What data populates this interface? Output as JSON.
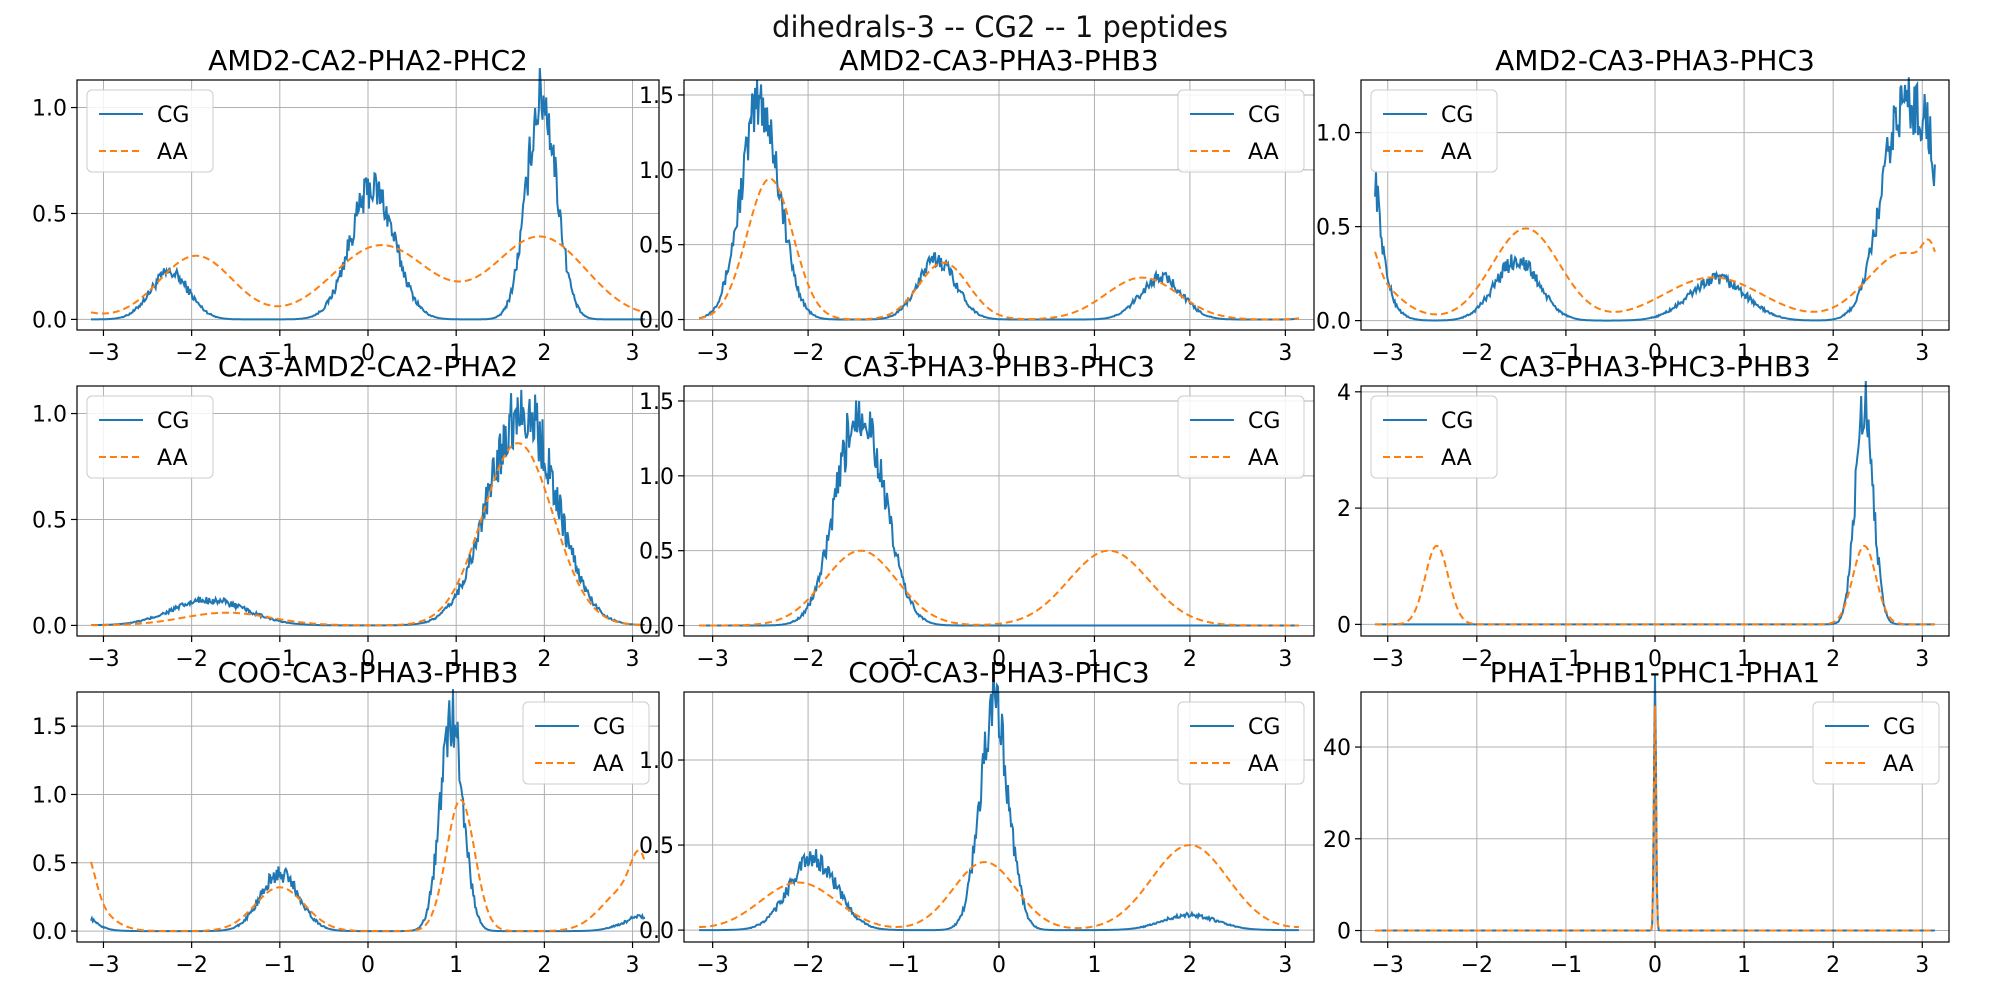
{
  "figure": {
    "suptitle": "dihedrals-3 -- CG2 -- 1 peptides",
    "colors": {
      "CG": "#1f77b4",
      "AA": "#ff7f0e",
      "grid": "#b0b0b0",
      "axis": "#000000"
    },
    "series_styles": {
      "CG": "solid",
      "AA": "dashed"
    }
  },
  "chart_data": [
    {
      "type": "line",
      "title": "AMD2-CA2-PHA2-PHC2",
      "xlim": [
        -3.3,
        3.3
      ],
      "ylim": [
        -0.05,
        1.13
      ],
      "xticks": [
        -3,
        -2,
        -1,
        0,
        1,
        2,
        3
      ],
      "yticks": [
        0.0,
        0.5,
        1.0
      ],
      "ytick_labels": [
        "0.0",
        "0.5",
        "1.0"
      ],
      "legend": "top-left",
      "grid": true,
      "series": [
        {
          "name": "CG",
          "peaks": [
            [
              -2.25,
              0.22,
              0.22
            ],
            [
              0.05,
              0.62,
              0.25
            ],
            [
              1.97,
              1.05,
              0.17
            ]
          ]
        },
        {
          "name": "AA",
          "peaks": [
            [
              -1.95,
              0.3,
              0.42
            ],
            [
              0.15,
              0.35,
              0.55
            ],
            [
              1.95,
              0.39,
              0.52
            ]
          ]
        }
      ]
    },
    {
      "type": "line",
      "title": "AMD2-CA3-PHA3-PHB3",
      "xlim": [
        -3.3,
        3.3
      ],
      "ylim": [
        -0.07,
        1.6
      ],
      "xticks": [
        -3,
        -2,
        -1,
        0,
        1,
        2,
        3
      ],
      "yticks": [
        0.0,
        0.5,
        1.0,
        1.5
      ],
      "ytick_labels": [
        "0.0",
        "0.5",
        "1.0",
        "1.5"
      ],
      "legend": "top-right",
      "grid": true,
      "series": [
        {
          "name": "CG",
          "peaks": [
            [
              -2.5,
              1.45,
              0.2
            ],
            [
              -0.65,
              0.4,
              0.2
            ],
            [
              1.7,
              0.28,
              0.22
            ]
          ]
        },
        {
          "name": "AA",
          "peaks": [
            [
              -2.4,
              0.94,
              0.24
            ],
            [
              -0.58,
              0.38,
              0.26
            ],
            [
              1.5,
              0.28,
              0.38
            ]
          ]
        }
      ]
    },
    {
      "type": "line",
      "title": "AMD2-CA3-PHA3-PHC3",
      "xlim": [
        -3.3,
        3.3
      ],
      "ylim": [
        -0.05,
        1.28
      ],
      "xticks": [
        -3,
        -2,
        -1,
        0,
        1,
        2,
        3
      ],
      "yticks": [
        0.0,
        0.5,
        1.0
      ],
      "ytick_labels": [
        "0.0",
        "0.5",
        "1.0"
      ],
      "legend": "top-left",
      "grid": true,
      "series": [
        {
          "name": "CG",
          "peaks": [
            [
              -3.2,
              0.38,
              0.1
            ],
            [
              -1.55,
              0.32,
              0.25
            ],
            [
              0.7,
              0.22,
              0.32
            ],
            [
              2.8,
              1.15,
              0.25
            ]
          ]
        },
        {
          "name": "AA",
          "peaks": [
            [
              -3.2,
              0.14,
              0.08
            ],
            [
              -1.45,
              0.49,
              0.38
            ],
            [
              0.65,
              0.23,
              0.55
            ],
            [
              2.8,
              0.36,
              0.42
            ]
          ]
        }
      ]
    },
    {
      "type": "line",
      "title": "CA3-AMD2-CA2-PHA2",
      "xlim": [
        -3.3,
        3.3
      ],
      "ylim": [
        -0.05,
        1.13
      ],
      "xticks": [
        -3,
        -2,
        -1,
        0,
        1,
        2,
        3
      ],
      "yticks": [
        0.0,
        0.5,
        1.0
      ],
      "ytick_labels": [
        "0.0",
        "0.5",
        "1.0"
      ],
      "legend": "top-left",
      "grid": true,
      "series": [
        {
          "name": "CG",
          "peaks": [
            [
              -1.8,
              0.12,
              0.42
            ],
            [
              1.75,
              1.02,
              0.38
            ]
          ]
        },
        {
          "name": "AA",
          "peaks": [
            [
              -1.6,
              0.06,
              0.5
            ],
            [
              1.7,
              0.86,
              0.4
            ]
          ]
        }
      ]
    },
    {
      "type": "line",
      "title": "CA3-PHA3-PHB3-PHC3",
      "xlim": [
        -3.3,
        3.3
      ],
      "ylim": [
        -0.07,
        1.6
      ],
      "xticks": [
        -3,
        -2,
        -1,
        0,
        1,
        2,
        3
      ],
      "yticks": [
        0.0,
        0.5,
        1.0,
        1.5
      ],
      "ytick_labels": [
        "0.0",
        "0.5",
        "1.0",
        "1.5"
      ],
      "legend": "top-right",
      "grid": true,
      "series": [
        {
          "name": "CG",
          "peaks": [
            [
              -1.45,
              1.45,
              0.25
            ]
          ]
        },
        {
          "name": "AA",
          "peaks": [
            [
              -1.45,
              0.5,
              0.38
            ],
            [
              1.15,
              0.5,
              0.42
            ]
          ]
        }
      ]
    },
    {
      "type": "line",
      "title": "CA3-PHA3-PHC3-PHB3",
      "xlim": [
        -3.3,
        3.3
      ],
      "ylim": [
        -0.2,
        4.1
      ],
      "xticks": [
        -3,
        -2,
        -1,
        0,
        1,
        2,
        3
      ],
      "yticks": [
        0,
        2,
        4
      ],
      "ytick_labels": [
        "0",
        "2",
        "4"
      ],
      "legend": "top-left",
      "grid": true,
      "series": [
        {
          "name": "CG",
          "peaks": [
            [
              2.35,
              3.85,
              0.1
            ]
          ]
        },
        {
          "name": "AA",
          "peaks": [
            [
              -2.45,
              1.35,
              0.13
            ],
            [
              2.35,
              1.35,
              0.13
            ]
          ]
        }
      ]
    },
    {
      "type": "line",
      "title": "COO-CA3-PHA3-PHB3",
      "xlim": [
        -3.3,
        3.3
      ],
      "ylim": [
        -0.08,
        1.75
      ],
      "xticks": [
        -3,
        -2,
        -1,
        0,
        1,
        2,
        3
      ],
      "yticks": [
        0.0,
        0.5,
        1.0,
        1.5
      ],
      "ytick_labels": [
        "0.0",
        "0.5",
        "1.0",
        "1.5"
      ],
      "legend": "top-right",
      "grid": true,
      "series": [
        {
          "name": "CG",
          "peaks": [
            [
              -3.2,
              0.05,
              0.1
            ],
            [
              -1.0,
              0.42,
              0.22
            ],
            [
              0.95,
              1.55,
              0.13
            ],
            [
              3.0,
              0.06,
              0.2
            ]
          ]
        },
        {
          "name": "AA",
          "peaks": [
            [
              -3.2,
              0.3,
              0.1
            ],
            [
              -1.0,
              0.32,
              0.28
            ],
            [
              1.05,
              0.96,
              0.16
            ],
            [
              2.95,
              0.32,
              0.28
            ]
          ]
        }
      ]
    },
    {
      "type": "line",
      "title": "COO-CA3-PHA3-PHC3",
      "xlim": [
        -3.3,
        3.3
      ],
      "ylim": [
        -0.07,
        1.4
      ],
      "xticks": [
        -3,
        -2,
        -1,
        0,
        1,
        2,
        3
      ],
      "yticks": [
        0.0,
        0.5,
        1.0
      ],
      "ytick_labels": [
        "0.0",
        "0.5",
        "1.0"
      ],
      "legend": "top-right",
      "grid": true,
      "series": [
        {
          "name": "CG",
          "peaks": [
            [
              -1.95,
              0.42,
              0.25
            ],
            [
              -0.05,
              1.3,
              0.15
            ],
            [
              2.0,
              0.09,
              0.28
            ]
          ]
        },
        {
          "name": "AA",
          "peaks": [
            [
              -2.1,
              0.28,
              0.4
            ],
            [
              -0.15,
              0.4,
              0.33
            ],
            [
              2.0,
              0.5,
              0.4
            ]
          ]
        }
      ]
    },
    {
      "type": "line",
      "title": "PHA1-PHB1-PHC1-PHA1",
      "xlim": [
        -3.3,
        3.3
      ],
      "ylim": [
        -2.5,
        52
      ],
      "xticks": [
        -3,
        -2,
        -1,
        0,
        1,
        2,
        3
      ],
      "yticks": [
        0,
        20,
        40
      ],
      "ytick_labels": [
        "0",
        "20",
        "40"
      ],
      "legend": "top-right",
      "grid": true,
      "series": [
        {
          "name": "CG",
          "peaks": [
            [
              0.0,
              50,
              0.012
            ]
          ]
        },
        {
          "name": "AA",
          "peaks": [
            [
              0.0,
              49,
              0.012
            ]
          ]
        }
      ]
    }
  ]
}
